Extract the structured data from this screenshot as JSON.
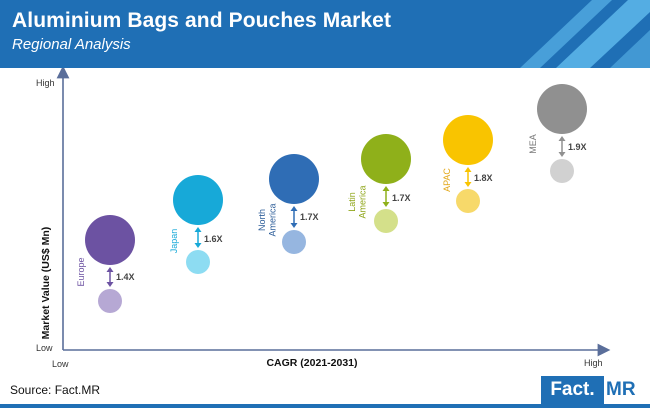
{
  "header": {
    "title": "Aluminium Bags and Pouches Market",
    "subtitle": "Regional Analysis"
  },
  "colors": {
    "banner": "#1f6fb5",
    "banner_accent": "#5ab4e8",
    "axis": "#5a6e9a"
  },
  "chart_data": {
    "type": "scatter",
    "xlabel": "CAGR (2021-2031)",
    "ylabel": "Market Value (US$ Mn)",
    "x_low_label": "Low",
    "x_high_label": "High",
    "y_low_label": "Low",
    "y_high_label": "High",
    "regions": [
      {
        "label": "Europe",
        "multiplier": "1.4X",
        "color": "#6c52a2",
        "small_color": "#b6a8d4",
        "label_color": "#6c52a2"
      },
      {
        "label": "Japan",
        "multiplier": "1.6X",
        "color": "#17a9d8",
        "small_color": "#8ddcf2",
        "label_color": "#17a9d8"
      },
      {
        "label": "North America",
        "multiplier": "1.7X",
        "color": "#2f6db5",
        "small_color": "#96b6e0",
        "label_color": "#2f5f9a"
      },
      {
        "label": "Latin America",
        "multiplier": "1.7X",
        "color": "#8fb01a",
        "small_color": "#d4e08a",
        "label_color": "#8fa61a"
      },
      {
        "label": "APAC",
        "multiplier": "1.8X",
        "color": "#f9c400",
        "small_color": "#f7d96a",
        "label_color": "#e3a81a"
      },
      {
        "label": "MEA",
        "multiplier": "1.9X",
        "color": "#909090",
        "small_color": "#d1d1d1",
        "label_color": "#7a7a7a"
      }
    ]
  },
  "footer": {
    "source": "Source: Fact.MR",
    "logo_left": "Fact.",
    "logo_right": "MR"
  }
}
